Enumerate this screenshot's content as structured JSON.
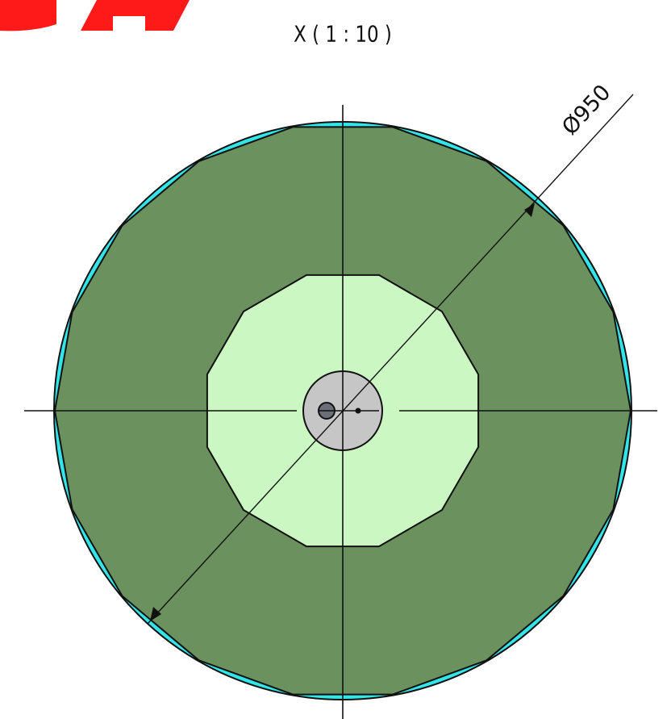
{
  "view_label": "X ( 1 : 10 )",
  "dimension": "Ø950"
}
